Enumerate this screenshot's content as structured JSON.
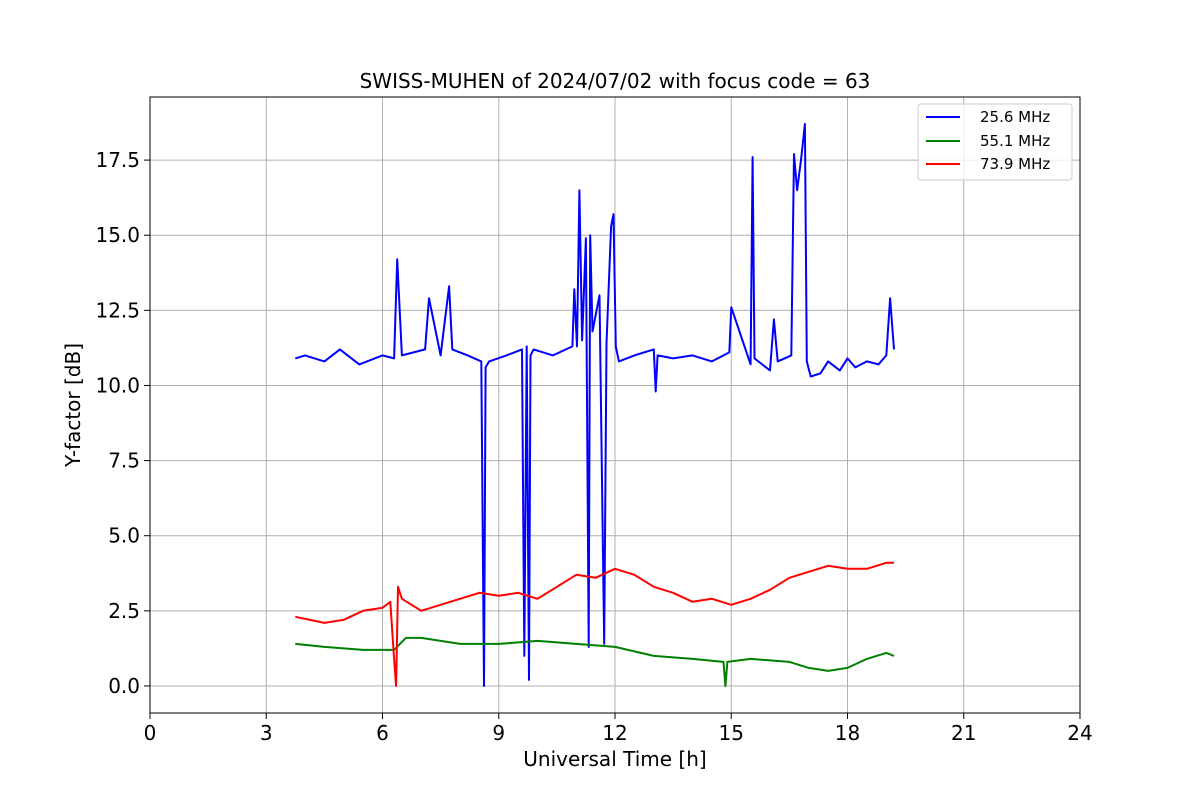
{
  "chart_data": {
    "type": "line",
    "title": "SWISS-MUHEN of 2024/07/02 with focus code = 63",
    "xlabel": "Universal Time [h]",
    "ylabel": "Y-factor [dB]",
    "xlim": [
      0,
      24
    ],
    "ylim": [
      -0.9,
      19.6
    ],
    "xticks": [
      0,
      3,
      6,
      9,
      12,
      15,
      18,
      21,
      24
    ],
    "xtick_labels": [
      "0",
      "3",
      "6",
      "9",
      "12",
      "15",
      "18",
      "21",
      "24"
    ],
    "yticks": [
      0.0,
      2.5,
      5.0,
      7.5,
      10.0,
      12.5,
      15.0,
      17.5
    ],
    "ytick_labels": [
      "0.0",
      "2.5",
      "5.0",
      "7.5",
      "10.0",
      "12.5",
      "15.0",
      "17.5"
    ],
    "grid": true,
    "legend_position": "top-right",
    "series": [
      {
        "name": "25.6 MHz",
        "color": "#0000ff",
        "x": [
          3.75,
          4.0,
          4.5,
          4.9,
          5.4,
          6.0,
          6.3,
          6.38,
          6.5,
          7.1,
          7.2,
          7.5,
          7.72,
          7.8,
          8.2,
          8.55,
          8.62,
          8.66,
          8.75,
          9.2,
          9.6,
          9.66,
          9.72,
          9.78,
          9.82,
          9.9,
          10.4,
          10.9,
          10.95,
          11.02,
          11.08,
          11.15,
          11.25,
          11.32,
          11.36,
          11.42,
          11.6,
          11.72,
          11.78,
          11.9,
          11.96,
          12.02,
          12.1,
          12.5,
          13.0,
          13.05,
          13.1,
          13.5,
          14.0,
          14.5,
          14.95,
          15.0,
          15.5,
          15.55,
          15.6,
          16.0,
          16.1,
          16.2,
          16.55,
          16.62,
          16.7,
          16.8,
          16.9,
          16.95,
          17.05,
          17.3,
          17.5,
          17.8,
          18.0,
          18.2,
          18.5,
          18.8,
          19.0,
          19.1,
          19.2
        ],
        "y": [
          10.9,
          11.0,
          10.8,
          11.2,
          10.7,
          11.0,
          10.9,
          14.2,
          11.0,
          11.2,
          12.9,
          11.0,
          13.3,
          11.2,
          11.0,
          10.8,
          0.0,
          10.6,
          10.8,
          11.0,
          11.2,
          1.0,
          11.3,
          0.2,
          11.0,
          11.2,
          11.0,
          11.3,
          13.2,
          11.3,
          16.5,
          11.5,
          14.9,
          1.3,
          15.0,
          11.8,
          13.0,
          1.4,
          11.4,
          15.3,
          15.7,
          11.3,
          10.8,
          11.0,
          11.2,
          9.8,
          11.0,
          10.9,
          11.0,
          10.8,
          11.1,
          12.6,
          10.7,
          17.6,
          10.9,
          10.5,
          12.2,
          10.8,
          11.0,
          17.7,
          16.5,
          17.5,
          18.7,
          10.8,
          10.3,
          10.4,
          10.8,
          10.5,
          10.9,
          10.6,
          10.8,
          10.7,
          11.0,
          12.9,
          11.2
        ]
      },
      {
        "name": "55.1 MHz",
        "color": "#008000",
        "x": [
          3.75,
          4.5,
          5.5,
          6.3,
          6.6,
          7.0,
          8.0,
          9.0,
          10.0,
          11.0,
          12.0,
          13.0,
          14.0,
          14.8,
          14.85,
          14.9,
          15.5,
          16.5,
          17.0,
          17.5,
          18.0,
          18.5,
          19.0,
          19.2
        ],
        "y": [
          1.4,
          1.3,
          1.2,
          1.2,
          1.6,
          1.6,
          1.4,
          1.4,
          1.5,
          1.4,
          1.3,
          1.0,
          0.9,
          0.8,
          0.0,
          0.8,
          0.9,
          0.8,
          0.6,
          0.5,
          0.6,
          0.9,
          1.1,
          1.0
        ]
      },
      {
        "name": "73.9 MHz",
        "color": "#ff0000",
        "x": [
          3.75,
          4.5,
          5.0,
          5.5,
          6.0,
          6.2,
          6.3,
          6.35,
          6.4,
          6.5,
          7.0,
          7.5,
          8.0,
          8.5,
          9.0,
          9.5,
          10.0,
          10.5,
          11.0,
          11.5,
          12.0,
          12.5,
          13.0,
          13.5,
          14.0,
          14.5,
          15.0,
          15.5,
          16.0,
          16.5,
          17.0,
          17.5,
          18.0,
          18.5,
          19.0,
          19.2
        ],
        "y": [
          2.3,
          2.1,
          2.2,
          2.5,
          2.6,
          2.8,
          0.9,
          0.0,
          3.3,
          2.9,
          2.5,
          2.7,
          2.9,
          3.1,
          3.0,
          3.1,
          2.9,
          3.3,
          3.7,
          3.6,
          3.9,
          3.7,
          3.3,
          3.1,
          2.8,
          2.9,
          2.7,
          2.9,
          3.2,
          3.6,
          3.8,
          4.0,
          3.9,
          3.9,
          4.1,
          4.1
        ]
      }
    ]
  }
}
